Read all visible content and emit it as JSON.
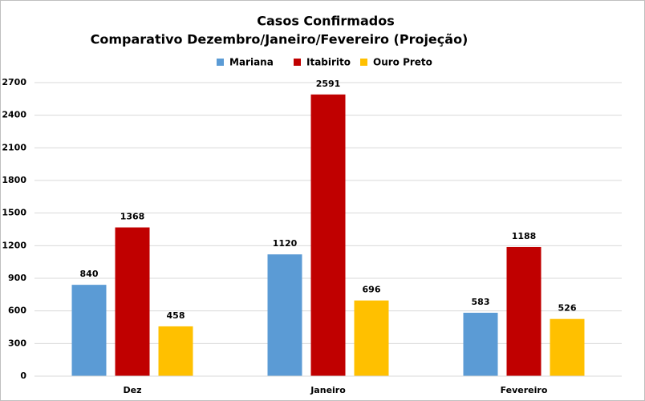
{
  "chart_data": {
    "type": "bar",
    "title": "Casos Confirmados",
    "subtitle": "Comparativo Dezembro/Janeiro/Fevereiro (Projeção)",
    "categories": [
      "Dez",
      "Janeiro",
      "Fevereiro"
    ],
    "series": [
      {
        "name": "Mariana",
        "color": "#5b9bd5",
        "values": [
          840,
          1120,
          583
        ]
      },
      {
        "name": "Itabirito",
        "color": "#c00000",
        "values": [
          1368,
          2591,
          1188
        ]
      },
      {
        "name": "Ouro Preto",
        "color": "#ffc000",
        "values": [
          458,
          696,
          526
        ]
      }
    ],
    "ylim": [
      0,
      2700
    ],
    "yticks": [
      0,
      300,
      600,
      900,
      1200,
      1500,
      1800,
      2100,
      2400,
      2700
    ],
    "grid": true,
    "legend": "top"
  }
}
